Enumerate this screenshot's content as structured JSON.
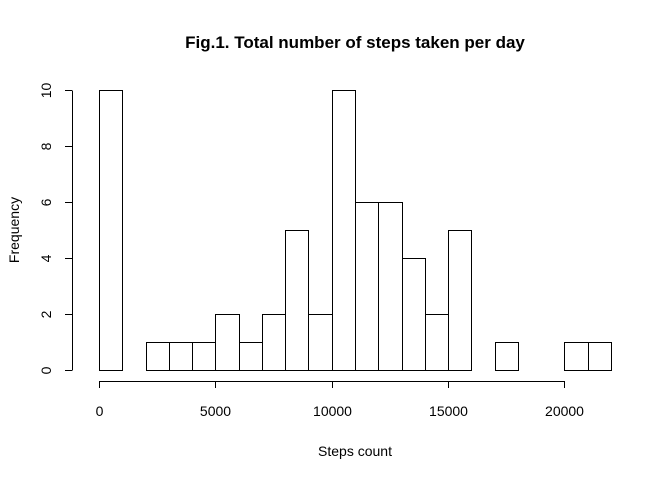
{
  "chart_data": {
    "type": "bar",
    "title": "Fig.1. Total number of steps taken per day",
    "xlabel": "Steps count",
    "ylabel": "Frequency",
    "bin_width": 1000,
    "bins": [
      {
        "start": 0,
        "end": 1000,
        "count": 10
      },
      {
        "start": 1000,
        "end": 2000,
        "count": 0
      },
      {
        "start": 2000,
        "end": 3000,
        "count": 1
      },
      {
        "start": 3000,
        "end": 4000,
        "count": 1
      },
      {
        "start": 4000,
        "end": 5000,
        "count": 1
      },
      {
        "start": 5000,
        "end": 6000,
        "count": 2
      },
      {
        "start": 6000,
        "end": 7000,
        "count": 1
      },
      {
        "start": 7000,
        "end": 8000,
        "count": 2
      },
      {
        "start": 8000,
        "end": 9000,
        "count": 5
      },
      {
        "start": 9000,
        "end": 10000,
        "count": 2
      },
      {
        "start": 10000,
        "end": 11000,
        "count": 10
      },
      {
        "start": 11000,
        "end": 12000,
        "count": 6
      },
      {
        "start": 12000,
        "end": 13000,
        "count": 6
      },
      {
        "start": 13000,
        "end": 14000,
        "count": 4
      },
      {
        "start": 14000,
        "end": 15000,
        "count": 2
      },
      {
        "start": 15000,
        "end": 16000,
        "count": 5
      },
      {
        "start": 16000,
        "end": 17000,
        "count": 0
      },
      {
        "start": 17000,
        "end": 18000,
        "count": 1
      },
      {
        "start": 18000,
        "end": 19000,
        "count": 0
      },
      {
        "start": 19000,
        "end": 20000,
        "count": 0
      },
      {
        "start": 20000,
        "end": 21000,
        "count": 1
      },
      {
        "start": 21000,
        "end": 22000,
        "count": 1
      }
    ],
    "xlim": [
      0,
      22000
    ],
    "ylim": [
      0,
      10
    ],
    "x_ticks": [
      0,
      5000,
      10000,
      15000,
      20000
    ],
    "y_ticks": [
      0,
      2,
      4,
      6,
      8,
      10
    ],
    "grid": false,
    "legend": "none"
  }
}
